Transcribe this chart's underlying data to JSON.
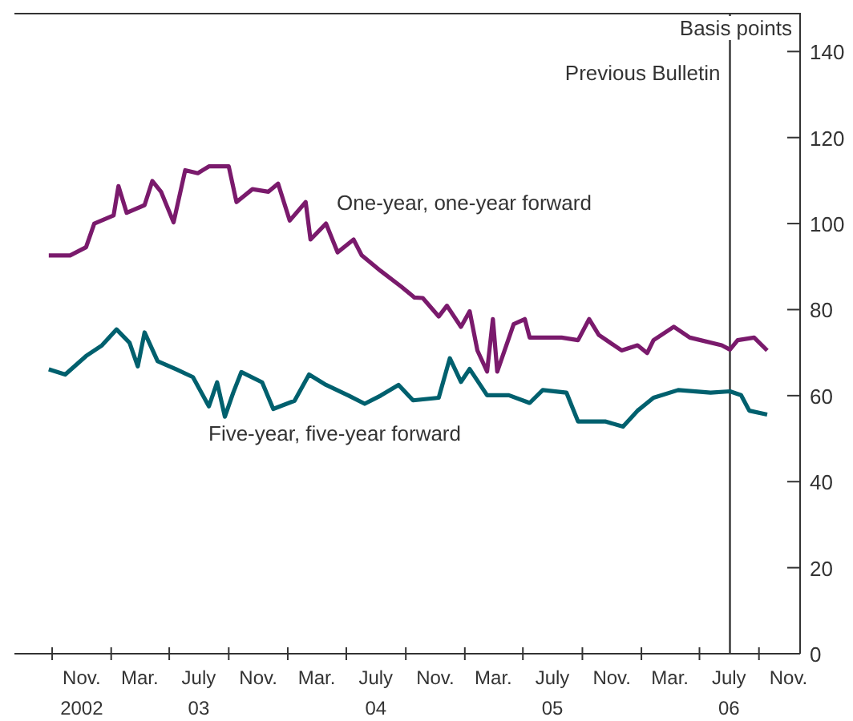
{
  "chart_data": {
    "type": "line",
    "ylabel": "Basis points",
    "xlim": [
      "2002-06-15",
      "2006-11-25"
    ],
    "ylim": [
      0,
      149
    ],
    "yticks": [
      0,
      20,
      40,
      60,
      80,
      100,
      120,
      140
    ],
    "xticks": [
      {
        "value": "2002-09-01",
        "label": null
      },
      {
        "value": "2002-11-01",
        "label": "Nov.\n2002"
      },
      {
        "value": "2003-01-01",
        "label": null
      },
      {
        "value": "2003-03-01",
        "label": "Mar."
      },
      {
        "value": "2003-05-01",
        "label": null
      },
      {
        "value": "2003-07-01",
        "label": "July\n03"
      },
      {
        "value": "2003-09-01",
        "label": null
      },
      {
        "value": "2003-11-01",
        "label": "Nov."
      },
      {
        "value": "2004-01-01",
        "label": null
      },
      {
        "value": "2004-03-01",
        "label": "Mar."
      },
      {
        "value": "2004-05-01",
        "label": null
      },
      {
        "value": "2004-07-01",
        "label": "July\n04"
      },
      {
        "value": "2004-09-01",
        "label": null
      },
      {
        "value": "2004-11-01",
        "label": "Nov."
      },
      {
        "value": "2005-01-01",
        "label": null
      },
      {
        "value": "2005-03-01",
        "label": "Mar."
      },
      {
        "value": "2005-05-01",
        "label": null
      },
      {
        "value": "2005-07-01",
        "label": "July\n05"
      },
      {
        "value": "2005-09-01",
        "label": null
      },
      {
        "value": "2005-11-01",
        "label": "Nov."
      },
      {
        "value": "2006-01-01",
        "label": null
      },
      {
        "value": "2006-03-01",
        "label": "Mar."
      },
      {
        "value": "2006-05-01",
        "label": null
      },
      {
        "value": "2006-07-01",
        "label": "July\n06"
      },
      {
        "value": "2006-09-01",
        "label": null
      },
      {
        "value": "2006-11-01",
        "label": "Nov."
      }
    ],
    "ref_lines": [
      {
        "axis": "x",
        "value": "2006-07-03",
        "label": "Previous Bulletin",
        "color": "#333333"
      }
    ],
    "series": [
      {
        "name": "One-year, one-year forward",
        "color": "#7a1a6c",
        "x": [
          "2002-08-25",
          "2002-10-08",
          "2002-11-10",
          "2002-11-27",
          "2003-01-06",
          "2003-01-16",
          "2003-02-02",
          "2003-03-11",
          "2003-03-27",
          "2003-04-14",
          "2003-05-10",
          "2003-06-03",
          "2003-06-29",
          "2003-07-22",
          "2003-09-01",
          "2003-09-17",
          "2003-10-20",
          "2003-11-22",
          "2003-12-12",
          "2004-01-05",
          "2004-02-07",
          "2004-02-17",
          "2004-03-20",
          "2004-04-13",
          "2004-05-16",
          "2004-06-02",
          "2004-07-11",
          "2004-08-23",
          "2004-09-19",
          "2004-10-06",
          "2004-11-08",
          "2004-11-25",
          "2004-12-24",
          "2005-01-11",
          "2005-01-27",
          "2005-02-16",
          "2005-02-28",
          "2005-03-09",
          "2005-04-12",
          "2005-05-05",
          "2005-05-15",
          "2005-07-20",
          "2005-08-23",
          "2005-09-15",
          "2005-10-05",
          "2005-11-21",
          "2005-12-24",
          "2006-01-13",
          "2006-01-26",
          "2006-03-09",
          "2006-04-11",
          "2006-06-16",
          "2006-07-03",
          "2006-07-19",
          "2006-08-22",
          "2006-09-18"
        ],
        "values": [
          92.6,
          92.6,
          94.5,
          100,
          101.9,
          108.7,
          102.5,
          104.3,
          109.9,
          107.4,
          100.3,
          112.4,
          111.7,
          113.3,
          113.3,
          105,
          108,
          107.4,
          109.3,
          100.7,
          105,
          96.3,
          100,
          93.3,
          96.3,
          92.6,
          89,
          85.3,
          82.8,
          82.7,
          78.4,
          80.9,
          76,
          79.6,
          70.5,
          65.6,
          77.8,
          65.6,
          76.6,
          77.8,
          73.5,
          73.5,
          72.9,
          77.8,
          74.1,
          70.5,
          71.7,
          69.9,
          72.9,
          76,
          73.5,
          71.7,
          70.7,
          72.9,
          73.5,
          70.5
        ]
      },
      {
        "name": "Five-year, five-year forward",
        "color": "#00606e",
        "x": [
          "2002-08-25",
          "2002-09-28",
          "2002-11-10",
          "2002-12-13",
          "2003-01-12",
          "2003-02-08",
          "2003-02-25",
          "2003-03-11",
          "2003-04-07",
          "2003-05-16",
          "2003-06-19",
          "2003-07-22",
          "2003-08-08",
          "2003-08-24",
          "2003-09-10",
          "2003-09-27",
          "2003-11-09",
          "2003-12-02",
          "2004-01-15",
          "2004-02-14",
          "2004-03-20",
          "2004-05-06",
          "2004-06-08",
          "2004-07-11",
          "2004-08-17",
          "2004-09-16",
          "2004-11-08",
          "2004-12-01",
          "2004-12-24",
          "2005-01-11",
          "2005-02-16",
          "2005-04-02",
          "2005-05-15",
          "2005-06-11",
          "2005-07-30",
          "2005-08-23",
          "2005-10-18",
          "2005-11-24",
          "2005-12-24",
          "2006-01-26",
          "2006-03-18",
          "2006-05-24",
          "2006-07-03",
          "2006-07-26",
          "2006-08-12",
          "2006-09-18"
        ],
        "values": [
          66.1,
          64.9,
          69.2,
          71.7,
          75.4,
          72.3,
          66.8,
          74.7,
          68,
          66.1,
          64.3,
          57.5,
          63.1,
          55.1,
          60.6,
          65.5,
          63.1,
          56.9,
          58.8,
          64.9,
          62.5,
          60,
          58.1,
          60,
          62.5,
          58.9,
          59.5,
          68.7,
          63.2,
          66.2,
          60.1,
          60.1,
          58.3,
          61.3,
          60.7,
          54,
          54,
          52.8,
          56.5,
          59.5,
          61.3,
          60.7,
          61,
          60.1,
          56.5,
          55.6
        ]
      }
    ]
  }
}
